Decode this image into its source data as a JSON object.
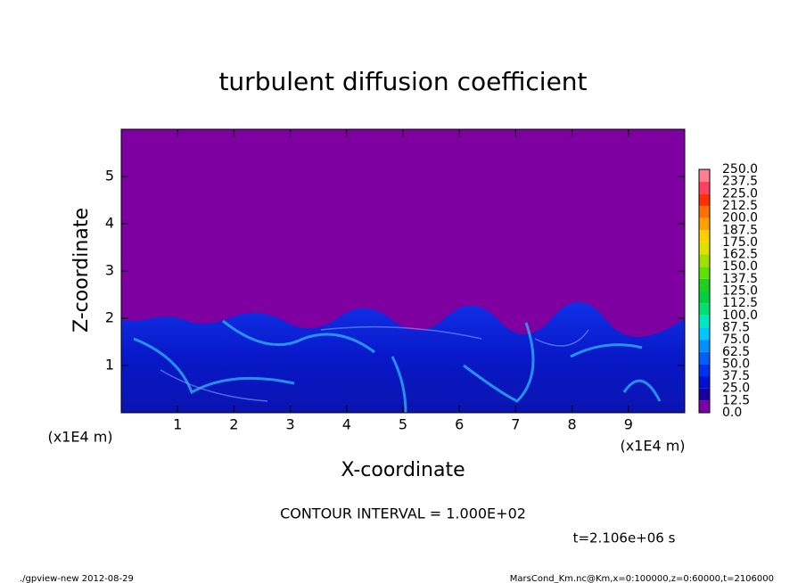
{
  "chart_data": {
    "type": "contour",
    "title": "turbulent diffusion coefficient",
    "xlabel": "X-coordinate",
    "ylabel": "Z-coordinate",
    "x_unit": "(x1E4 m)",
    "x_unit_right": "(x1E4 m)",
    "xlim": [
      0,
      10
    ],
    "xticks": [
      1,
      2,
      3,
      4,
      5,
      6,
      7,
      8,
      9
    ],
    "ylim": [
      0,
      6
    ],
    "yticks": [
      1,
      2,
      3,
      4,
      5
    ],
    "colorbar": {
      "levels": [
        {
          "value": 0,
          "label": "0.0"
        },
        12.5,
        {
          "value": 25,
          "label": "25.0"
        },
        37.5,
        {
          "value": 50,
          "label": "50.0"
        },
        62.5,
        {
          "value": 75,
          "label": "75.0"
        },
        87.5,
        {
          "value": 100,
          "label": "100.0"
        },
        112.5,
        {
          "value": 125,
          "label": "125.0"
        },
        137.5,
        {
          "value": 150,
          "label": "150.0"
        },
        162.5,
        {
          "value": 175,
          "label": "175.0"
        },
        187.5,
        {
          "value": 200,
          "label": "200.0"
        },
        212.5,
        {
          "value": 225,
          "label": "225.0"
        },
        237.5,
        {
          "value": 250,
          "label": "250.0"
        }
      ],
      "colors": [
        "#7a00a8",
        "#1a00a0",
        "#0010d0",
        "#0030f0",
        "#0060ff",
        "#0090ff",
        "#00c8ff",
        "#00e8c0",
        "#00e070",
        "#00d040",
        "#20d020",
        "#60e000",
        "#a0e000",
        "#e0e000",
        "#ffd000",
        "#ffa000",
        "#ff7000",
        "#ff3000",
        "#ff4060",
        "#ff8090"
      ]
    },
    "annotations": [
      "CONTOUR INTERVAL = 1.000E+02",
      "t=2.106e+06 s"
    ],
    "footer_left": "./gpview-new   2012-08-29",
    "footer_right": "MarsCond_Km.nc@Km,x=0:100000,z=0:60000,t=2106000"
  }
}
